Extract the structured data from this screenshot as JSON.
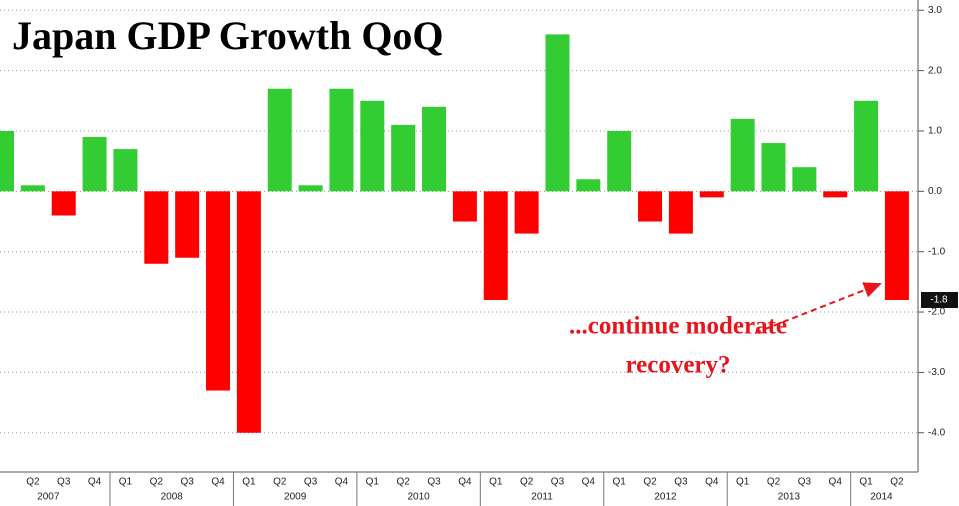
{
  "chart_data": {
    "type": "bar",
    "title": "Japan GDP Growth QoQ",
    "categories": [
      null,
      "Q2",
      "Q3",
      "Q4",
      "Q1",
      "Q2",
      "Q3",
      "Q4",
      "Q1",
      "Q2",
      "Q3",
      "Q4",
      "Q1",
      "Q2",
      "Q3",
      "Q4",
      "Q1",
      "Q2",
      "Q3",
      "Q4",
      "Q1",
      "Q2",
      "Q3",
      "Q4",
      "Q1",
      "Q2",
      "Q3",
      "Q4",
      "Q1",
      "Q2"
    ],
    "year_labels": [
      "2007",
      "2008",
      "2009",
      "2010",
      "2011",
      "2012",
      "2013",
      "2014"
    ],
    "values": [
      1.0,
      0.1,
      -0.4,
      0.9,
      0.7,
      -1.2,
      -1.1,
      -3.3,
      -4.0,
      1.7,
      0.1,
      1.7,
      1.5,
      1.1,
      1.4,
      -0.5,
      -1.8,
      -0.7,
      2.6,
      0.2,
      1.0,
      -0.5,
      -0.7,
      -0.1,
      1.2,
      0.8,
      0.4,
      -0.1,
      1.5,
      -1.8
    ],
    "colors": {
      "positive": "#33cc33",
      "negative": "#ff0000"
    },
    "ylim": [
      -4.65,
      3.17
    ],
    "yticks": [
      {
        "value": 3,
        "label": "3.0"
      },
      {
        "value": 2,
        "label": "2.0"
      },
      {
        "value": 1,
        "label": "1.0"
      },
      {
        "value": 0,
        "label": "0.0"
      },
      {
        "value": -1,
        "label": "-1.0"
      },
      {
        "value": -2,
        "label": "-2.0"
      },
      {
        "value": -3,
        "label": "-3.0"
      },
      {
        "value": -4,
        "label": "-4.0"
      }
    ],
    "annotation": [
      "...continue moderate",
      "recovery?"
    ]
  }
}
